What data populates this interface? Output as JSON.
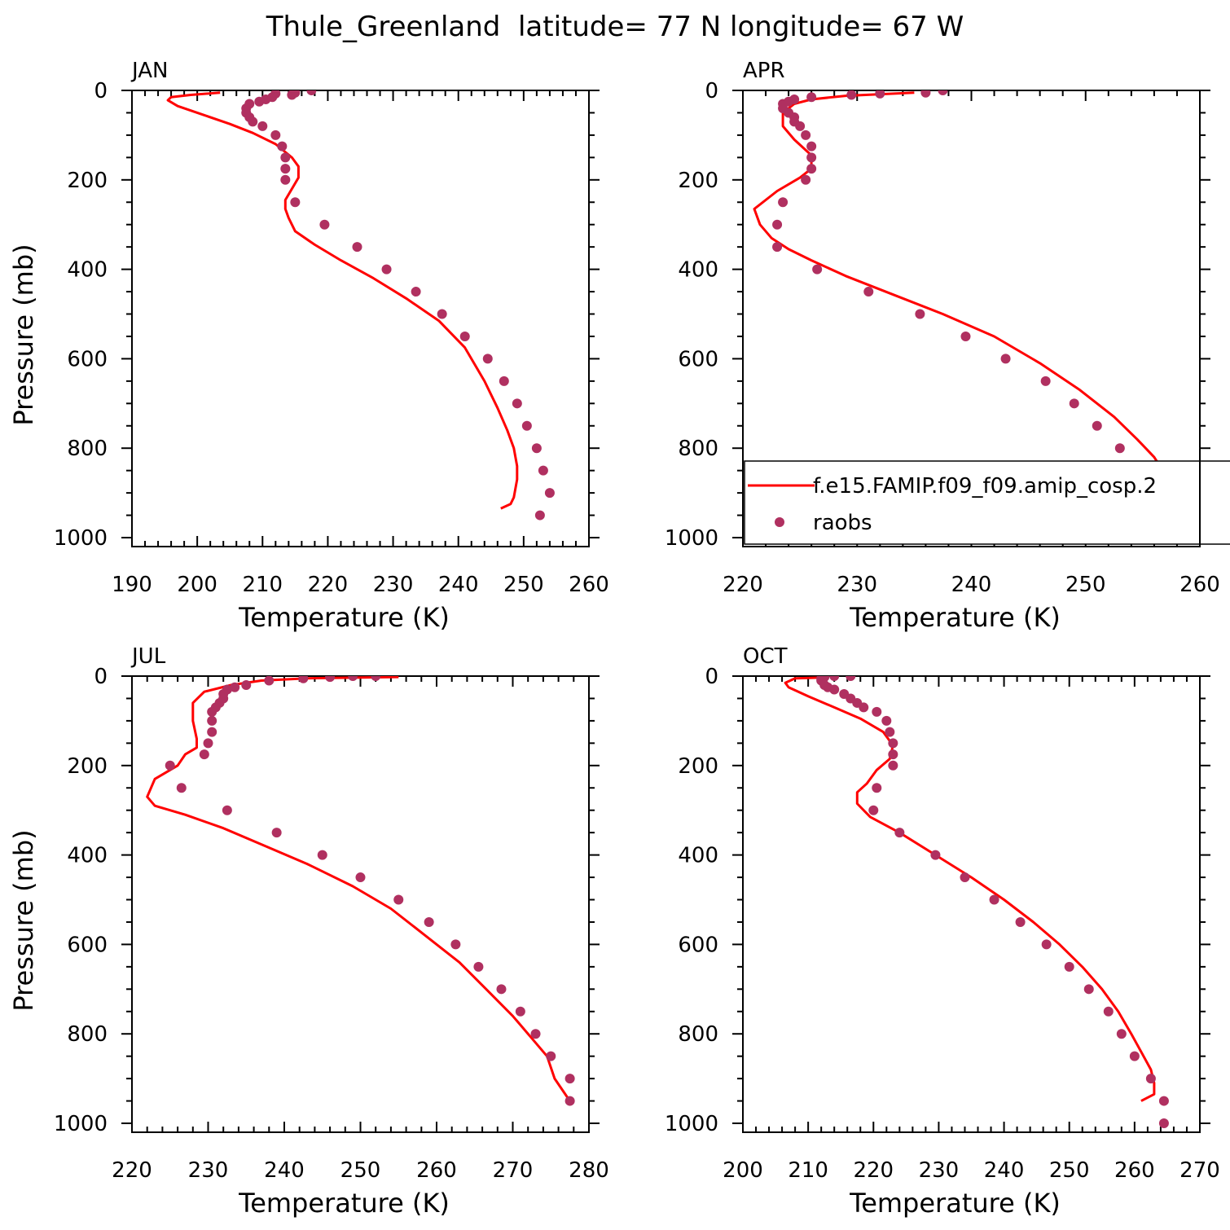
{
  "figure": {
    "title": "Thule_Greenland  latitude= 77 N longitude= 67 W"
  },
  "colors": {
    "model_line": "#ff0000",
    "obs_marker": "#b03060",
    "axes": "#000000"
  },
  "legend": {
    "model_label": "f.e15.FAMIP.f09_f09.amip_cosp.2",
    "obs_label": "raobs",
    "placement": "lower-right of APR panel"
  },
  "chart_data": [
    {
      "type": "line",
      "panel": "JAN",
      "title": "JAN",
      "xlabel": "Temperature (K)",
      "ylabel": "Pressure (mb)",
      "xlim": [
        190,
        260
      ],
      "ylim": [
        1020,
        0
      ],
      "y_inverted": true,
      "xticks": [
        190,
        200,
        210,
        220,
        230,
        240,
        250,
        260
      ],
      "yticks": [
        0,
        200,
        400,
        600,
        800,
        1000
      ],
      "series": [
        {
          "role": "model",
          "style": "line",
          "x": [
            203.5,
            199,
            196,
            195.5,
            197,
            201,
            205,
            208.5,
            212,
            214.5,
            215.5,
            215.5,
            214.5,
            213.5,
            213.5,
            214,
            215,
            218,
            222,
            227,
            232,
            237,
            241,
            244,
            246,
            247.5,
            248.5,
            249,
            249,
            248.5,
            248,
            246.5
          ],
          "y": [
            5,
            10,
            15,
            22,
            35,
            55,
            75,
            95,
            120,
            150,
            170,
            195,
            220,
            245,
            265,
            285,
            315,
            345,
            380,
            420,
            465,
            515,
            575,
            650,
            710,
            760,
            800,
            840,
            870,
            910,
            925,
            935
          ]
        },
        {
          "role": "observations",
          "style": "markers",
          "x": [
            217.5,
            215,
            212,
            214.5,
            211.5,
            210.5,
            209.5,
            208,
            207.5,
            207.5,
            208,
            208.5,
            210,
            212,
            213,
            213.5,
            213.5,
            213.5,
            215,
            219.5,
            224.5,
            229,
            233.5,
            237.5,
            241,
            244.5,
            247,
            249,
            250.5,
            252,
            253,
            254,
            252.5
          ],
          "y": [
            0,
            5,
            7,
            10,
            15,
            20,
            25,
            30,
            40,
            50,
            60,
            70,
            80,
            100,
            125,
            150,
            175,
            200,
            250,
            300,
            350,
            400,
            450,
            500,
            550,
            600,
            650,
            700,
            750,
            800,
            850,
            900,
            950
          ]
        }
      ]
    },
    {
      "type": "line",
      "panel": "APR",
      "title": "APR",
      "xlabel": "Temperature (K)",
      "ylabel": "",
      "xlim": [
        220,
        260
      ],
      "ylim": [
        1020,
        0
      ],
      "y_inverted": true,
      "xticks": [
        220,
        230,
        240,
        250,
        260
      ],
      "yticks": [
        0,
        200,
        400,
        600,
        800,
        1000
      ],
      "series": [
        {
          "role": "model",
          "style": "line",
          "x": [
            235,
            229,
            226,
            224.5,
            223.5,
            223.5,
            224.5,
            226,
            226,
            225,
            223,
            221,
            221.5,
            222.5,
            224,
            226,
            229,
            233,
            237.5,
            242,
            246,
            249.5,
            252.5,
            254.5,
            256,
            257,
            257,
            256
          ],
          "y": [
            5,
            12,
            20,
            30,
            50,
            80,
            110,
            145,
            175,
            195,
            225,
            265,
            300,
            330,
            355,
            380,
            415,
            455,
            500,
            550,
            610,
            670,
            730,
            780,
            820,
            860,
            920,
            935
          ]
        },
        {
          "role": "observations",
          "style": "markers",
          "x": [
            237.5,
            236,
            232,
            229.5,
            226,
            224.5,
            224,
            223.5,
            223.5,
            224,
            224.5,
            224.5,
            225,
            225.5,
            226,
            226,
            226,
            225.5,
            223.5,
            223,
            223,
            226.5,
            231,
            235.5,
            239.5,
            243,
            246.5,
            249,
            251,
            253,
            254.5,
            256,
            257,
            257
          ],
          "y": [
            0,
            5,
            7,
            10,
            15,
            20,
            25,
            30,
            40,
            50,
            60,
            70,
            80,
            100,
            125,
            150,
            175,
            200,
            250,
            300,
            350,
            400,
            450,
            500,
            550,
            600,
            650,
            700,
            750,
            800,
            850,
            900,
            950,
            1000
          ]
        }
      ]
    },
    {
      "type": "line",
      "panel": "JUL",
      "title": "JUL",
      "xlabel": "Temperature (K)",
      "ylabel": "Pressure (mb)",
      "xlim": [
        220,
        280
      ],
      "ylim": [
        1020,
        0
      ],
      "y_inverted": true,
      "xticks": [
        220,
        230,
        240,
        250,
        260,
        270,
        280
      ],
      "yticks": [
        0,
        200,
        400,
        600,
        800,
        1000
      ],
      "series": [
        {
          "role": "model",
          "style": "line",
          "x": [
            255,
            243,
            237,
            233,
            229.5,
            228,
            228,
            228.5,
            228.5,
            227,
            226,
            223,
            222,
            223,
            227,
            232,
            237.5,
            243,
            249,
            254,
            258.5,
            263,
            266.5,
            270,
            272.5,
            274.5,
            275.5,
            277.5
          ],
          "y": [
            2,
            5,
            10,
            20,
            35,
            60,
            100,
            140,
            160,
            175,
            200,
            230,
            270,
            290,
            310,
            340,
            380,
            420,
            470,
            520,
            580,
            640,
            700,
            760,
            810,
            850,
            900,
            950
          ]
        },
        {
          "role": "observations",
          "style": "markers",
          "x": [
            252,
            249,
            246,
            242.5,
            238,
            235,
            233.5,
            232.5,
            232,
            232,
            231.5,
            231,
            230.5,
            230.5,
            230.5,
            230,
            229.5,
            225,
            226.5,
            232.5,
            239,
            245,
            250,
            255,
            259,
            262.5,
            265.5,
            268.5,
            271,
            273,
            275,
            277.5,
            277.5
          ],
          "y": [
            0,
            0,
            2,
            5,
            10,
            20,
            25,
            30,
            40,
            50,
            60,
            70,
            80,
            100,
            125,
            150,
            175,
            200,
            250,
            300,
            350,
            400,
            450,
            500,
            550,
            600,
            650,
            700,
            750,
            800,
            850,
            900,
            950
          ]
        }
      ]
    },
    {
      "type": "line",
      "panel": "OCT",
      "title": "OCT",
      "xlabel": "Temperature (K)",
      "ylabel": "",
      "xlim": [
        200,
        270
      ],
      "ylim": [
        1020,
        0
      ],
      "y_inverted": true,
      "xticks": [
        200,
        210,
        220,
        230,
        240,
        250,
        260,
        270
      ],
      "yticks": [
        0,
        200,
        400,
        600,
        800,
        1000
      ],
      "series": [
        {
          "role": "model",
          "style": "line",
          "x": [
            213,
            208,
            206.5,
            207,
            210,
            214,
            218,
            221.5,
            223,
            222.5,
            220.5,
            219,
            217.5,
            217.5,
            219.5,
            224,
            229.5,
            235,
            240,
            244.5,
            248.5,
            252,
            255,
            257.5,
            259.5,
            261,
            262.5,
            263,
            263,
            261
          ],
          "y": [
            3,
            5,
            15,
            25,
            45,
            70,
            95,
            125,
            155,
            185,
            210,
            240,
            260,
            285,
            315,
            350,
            400,
            450,
            500,
            550,
            600,
            650,
            700,
            750,
            800,
            840,
            880,
            910,
            935,
            950
          ]
        },
        {
          "role": "observations",
          "style": "markers",
          "x": [
            216.5,
            214,
            212.5,
            212,
            212,
            212.5,
            213,
            214,
            215.5,
            216.5,
            217.5,
            218.5,
            220.5,
            222,
            222.5,
            223,
            223,
            223,
            220.5,
            220,
            224,
            229.5,
            234,
            238.5,
            242.5,
            246.5,
            250,
            253,
            256,
            258,
            260,
            262.5,
            264.5,
            264.5
          ],
          "y": [
            0,
            0,
            2,
            5,
            10,
            20,
            25,
            30,
            40,
            50,
            60,
            70,
            80,
            100,
            125,
            150,
            175,
            200,
            250,
            300,
            350,
            400,
            450,
            500,
            550,
            600,
            650,
            700,
            750,
            800,
            850,
            900,
            950,
            1000
          ]
        }
      ]
    }
  ]
}
